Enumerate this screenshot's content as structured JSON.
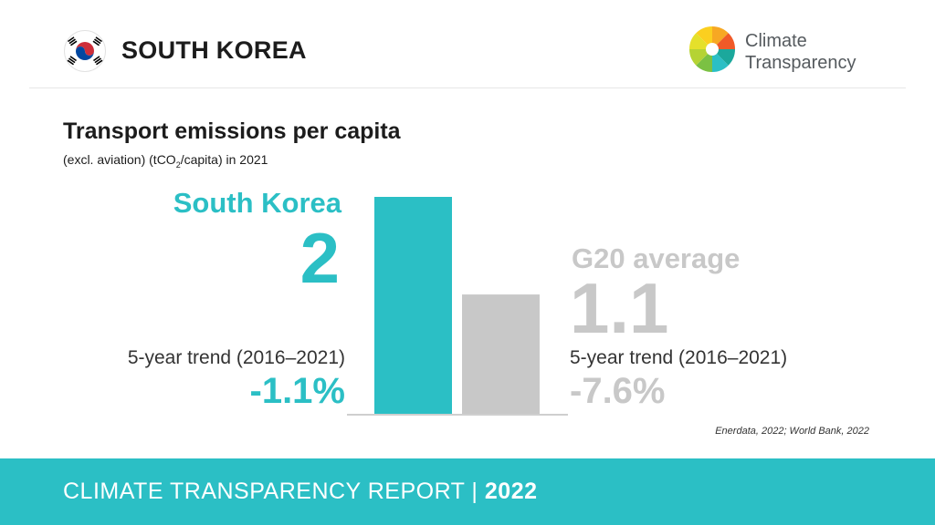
{
  "header": {
    "country": "SOUTH KOREA",
    "logo_line1": "Climate",
    "logo_line2": "Transparency"
  },
  "footer": {
    "report": "CLIMATE TRANSPARENCY REPORT |",
    "year": "2022"
  },
  "colors": {
    "accent": "#2bbfc5",
    "g20": "#c8c8c8",
    "footer_bg": "#2bbfc5"
  },
  "chart_data": {
    "type": "bar",
    "title": "Transport emissions per capita",
    "subtitle_pre": "(excl. aviation) (tCO",
    "subtitle_sub": "2",
    "subtitle_post": "/capita) in 2021",
    "categories": [
      "South Korea",
      "G20 average"
    ],
    "values": [
      2,
      1.1
    ],
    "value_labels": [
      "2",
      "1.1"
    ],
    "trend_label": "5-year trend (2016–2021)",
    "trends": [
      "-1.1%",
      "-7.6%"
    ],
    "bar_colors": [
      "#2bbfc5",
      "#c8c8c8"
    ],
    "ylim": [
      0,
      2
    ],
    "source": "Enerdata, 2022; World Bank, 2022"
  }
}
